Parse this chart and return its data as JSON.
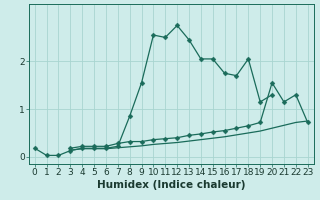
{
  "xlabel": "Humidex (Indice chaleur)",
  "background_color": "#ceecea",
  "grid_color": "#a8d5d0",
  "line_color": "#1a6b5a",
  "x_values": [
    0,
    1,
    2,
    3,
    4,
    5,
    6,
    7,
    8,
    9,
    10,
    11,
    12,
    13,
    14,
    15,
    16,
    17,
    18,
    19,
    20,
    21,
    22,
    23
  ],
  "line1": [
    0.18,
    0.03,
    0.03,
    0.13,
    0.18,
    0.18,
    0.18,
    0.22,
    0.85,
    1.55,
    2.55,
    2.5,
    2.75,
    2.45,
    2.05,
    2.05,
    1.75,
    1.7,
    2.05,
    1.15,
    1.3,
    null,
    null,
    null
  ],
  "line2": [
    null,
    null,
    null,
    0.18,
    0.22,
    0.22,
    0.22,
    0.28,
    0.32,
    0.32,
    0.36,
    0.38,
    0.4,
    0.45,
    0.48,
    0.52,
    0.55,
    0.6,
    0.65,
    0.72,
    1.55,
    1.15,
    1.3,
    0.72
  ],
  "line3": [
    null,
    null,
    null,
    0.14,
    0.17,
    0.17,
    0.17,
    0.19,
    0.21,
    0.23,
    0.26,
    0.28,
    0.3,
    0.33,
    0.36,
    0.39,
    0.42,
    0.46,
    0.5,
    0.54,
    0.6,
    0.66,
    0.72,
    0.75
  ],
  "ylim": [
    -0.15,
    3.2
  ],
  "xlim": [
    -0.5,
    23.5
  ],
  "yticks": [
    0,
    1,
    2
  ],
  "tick_fontsize": 6.5,
  "xlabel_fontsize": 7.5
}
